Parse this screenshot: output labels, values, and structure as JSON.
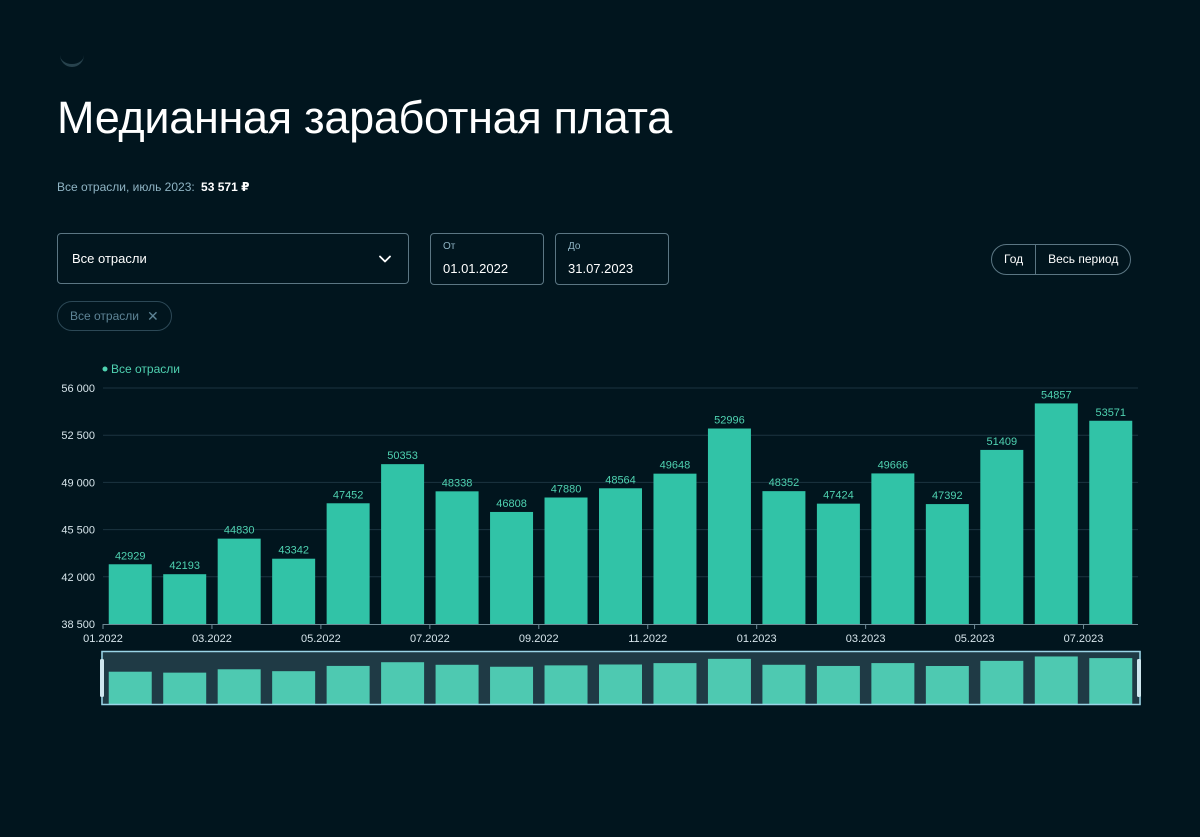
{
  "page": {
    "title": "Медианная заработная плата",
    "subtitle_label": "Все отрасли, июль 2023:",
    "subtitle_value": "53 571 ₽"
  },
  "filters": {
    "industry_select": "Все отрасли",
    "date_from_label": "От",
    "date_from_value": "01.01.2022",
    "date_to_label": "До",
    "date_to_value": "31.07.2023",
    "period_year": "Год",
    "period_all": "Весь период",
    "chip_label": "Все отрасли"
  },
  "colors": {
    "bar": "#31c3a7",
    "bar_mini": "#4ec9b1",
    "label": "#4fd2b1",
    "axis_text": "#d7e5eb",
    "grid": "#1c3440",
    "nav_bg": "#1f3a45",
    "nav_border": "#9ad4e6"
  },
  "chart_data": {
    "type": "bar",
    "legend": "Все отрасли",
    "categories": [
      "01.2022",
      "02.2022",
      "03.2022",
      "04.2022",
      "05.2022",
      "06.2022",
      "07.2022",
      "08.2022",
      "09.2022",
      "10.2022",
      "11.2022",
      "12.2022",
      "01.2023",
      "02.2023",
      "03.2023",
      "04.2023",
      "05.2023",
      "06.2023",
      "07.2023"
    ],
    "values": [
      42929,
      42193,
      44830,
      43342,
      47452,
      50353,
      48338,
      46808,
      47880,
      48564,
      49648,
      52996,
      48352,
      47424,
      49666,
      47392,
      51409,
      54857,
      53571
    ],
    "x_tick_labels": [
      "01.2022",
      "03.2022",
      "05.2022",
      "07.2022",
      "09.2022",
      "11.2022",
      "01.2023",
      "03.2023",
      "05.2023",
      "07.2023"
    ],
    "y_tick_labels": [
      "38 500",
      "42 000",
      "45 500",
      "49 000",
      "52 500",
      "56 000"
    ],
    "ylim": [
      38500,
      56000
    ],
    "y_ticks": [
      38500,
      42000,
      45500,
      49000,
      52500,
      56000
    ]
  }
}
